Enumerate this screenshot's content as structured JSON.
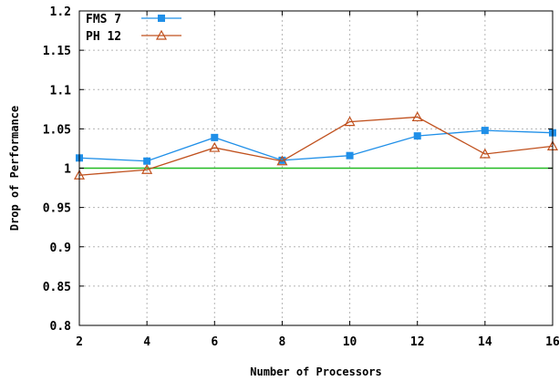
{
  "chart_data": {
    "type": "line",
    "xlabel": "Number of Processors",
    "ylabel": "Drop of Performance",
    "xlim": [
      2,
      16
    ],
    "ylim": [
      0.8,
      1.2
    ],
    "x_ticks": [
      "2",
      "4",
      "6",
      "8",
      "10",
      "12",
      "14",
      "16"
    ],
    "y_ticks": [
      "0.8",
      "0.85",
      "0.9",
      "0.95",
      "1",
      "1.05",
      "1.1",
      "1.15",
      "1.2"
    ],
    "grid": true,
    "legend_position": "top-left",
    "x": [
      2,
      4,
      6,
      8,
      10,
      12,
      14,
      16
    ],
    "series": [
      {
        "name": "FMS 7",
        "values": [
          1.013,
          1.009,
          1.039,
          1.01,
          1.016,
          1.041,
          1.048,
          1.045
        ],
        "color": "#1f8fe8",
        "marker": "square"
      },
      {
        "name": "PH 12",
        "values": [
          0.991,
          0.998,
          1.026,
          1.009,
          1.059,
          1.065,
          1.018,
          1.028
        ],
        "color": "#c0501d",
        "marker": "triangle-open"
      }
    ],
    "reference_line": {
      "y": 1.0,
      "color": "#22bb22"
    }
  }
}
